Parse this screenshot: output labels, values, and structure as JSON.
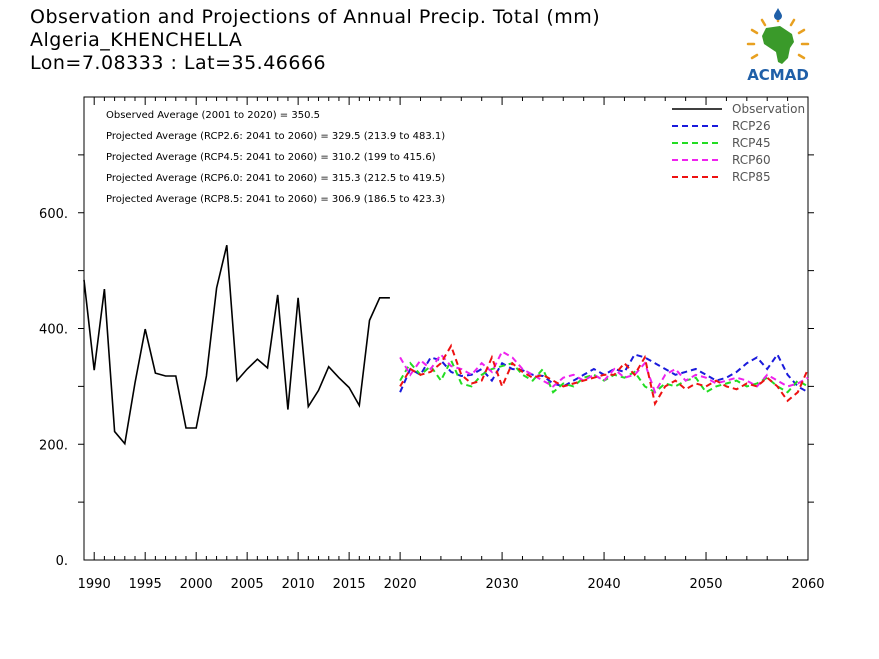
{
  "header": {
    "title": "Observation and Projections of Annual Precip. Total (mm)",
    "location": "Algeria_KHENCHELLA",
    "coords": "Lon=7.08333 : Lat=35.46666"
  },
  "logo": {
    "text": "ACMAD",
    "icon": "africa-map-logo"
  },
  "colors": {
    "observation": "#000000",
    "rcp26": "#1a1adc",
    "rcp45": "#22dd22",
    "rcp60": "#ee22ee",
    "rcp85": "#ee1111",
    "logo_green": "#3a9a2a",
    "logo_blue": "#1f5fa8",
    "logo_orange": "#e8a020"
  },
  "chart_data": {
    "type": "line",
    "title": "Observation and Projections of Annual Precip. Total (mm)",
    "xlim": [
      1989,
      2060
    ],
    "ylim": [
      0,
      800
    ],
    "x_ticks": [
      {
        "value": 1990,
        "label": "1990"
      },
      {
        "value": 1995,
        "label": "1995"
      },
      {
        "value": 2000,
        "label": "2000"
      },
      {
        "value": 2005,
        "label": "2005"
      },
      {
        "value": 2010,
        "label": "2010"
      },
      {
        "value": 2015,
        "label": "2015"
      },
      {
        "value": 2020,
        "label": "2020"
      },
      {
        "value": 2030,
        "label": "2030"
      },
      {
        "value": 2040,
        "label": "2040"
      },
      {
        "value": 2050,
        "label": "2050"
      },
      {
        "value": 2060,
        "label": "2060"
      }
    ],
    "y_ticks": [
      {
        "value": 0,
        "label": "0."
      },
      {
        "value": 200,
        "label": "200."
      },
      {
        "value": 400,
        "label": "400."
      },
      {
        "value": 600,
        "label": "600."
      }
    ],
    "stats": [
      "Observed Average (2001 to 2020) = 350.5",
      "Projected Average (RCP2.6: 2041 to 2060) = 329.5 (213.9 to 483.1)",
      "Projected Average (RCP4.5: 2041 to 2060) = 310.2 (199 to 415.6)",
      "Projected Average (RCP6.0: 2041 to 2060) = 315.3 (212.5 to 419.5)",
      "Projected Average (RCP8.5: 2041 to 2060) = 306.9 (186.5 to 423.3)"
    ],
    "legend_position": "top-right",
    "series": [
      {
        "name": "Observation",
        "dash": "solid",
        "x": [
          1989,
          1990,
          1991,
          1992,
          1993,
          1994,
          1995,
          1996,
          1997,
          1998,
          1999,
          2000,
          2001,
          2002,
          2003,
          2004,
          2005,
          2006,
          2007,
          2008,
          2009,
          2010,
          2011,
          2012,
          2013,
          2014,
          2015,
          2016,
          2017,
          2018,
          2019
        ],
        "y": [
          484,
          328,
          468,
          222,
          201,
          306,
          399,
          323,
          318,
          318,
          228,
          228,
          318,
          470,
          544,
          310,
          330,
          347,
          332,
          458,
          260,
          453,
          265,
          293,
          334,
          315,
          298,
          267,
          414,
          453,
          453
        ]
      },
      {
        "name": "RCP26",
        "dash": "dashed",
        "x": [
          2020,
          2021,
          2022,
          2023,
          2024,
          2025,
          2026,
          2027,
          2028,
          2029,
          2030,
          2031,
          2032,
          2033,
          2034,
          2035,
          2036,
          2037,
          2038,
          2039,
          2040,
          2041,
          2042,
          2043,
          2044,
          2045,
          2046,
          2047,
          2048,
          2049,
          2050,
          2051,
          2052,
          2053,
          2054,
          2055,
          2056,
          2057,
          2058,
          2059,
          2060
        ],
        "y": [
          290,
          330,
          320,
          350,
          345,
          325,
          318,
          320,
          330,
          310,
          340,
          330,
          328,
          320,
          318,
          305,
          300,
          310,
          320,
          330,
          320,
          330,
          325,
          355,
          350,
          340,
          330,
          320,
          325,
          330,
          320,
          310,
          315,
          325,
          340,
          350,
          330,
          355,
          320,
          300,
          290
        ]
      },
      {
        "name": "RCP45",
        "dash": "dashed",
        "x": [
          2020,
          2021,
          2022,
          2023,
          2024,
          2025,
          2026,
          2027,
          2028,
          2029,
          2030,
          2031,
          2032,
          2033,
          2034,
          2035,
          2036,
          2037,
          2038,
          2039,
          2040,
          2041,
          2042,
          2043,
          2044,
          2045,
          2046,
          2047,
          2048,
          2049,
          2050,
          2051,
          2052,
          2053,
          2054,
          2055,
          2056,
          2057,
          2058,
          2059,
          2060
        ],
        "y": [
          310,
          340,
          320,
          335,
          310,
          345,
          305,
          300,
          320,
          330,
          335,
          340,
          320,
          310,
          330,
          290,
          305,
          300,
          315,
          320,
          310,
          320,
          315,
          325,
          300,
          290,
          305,
          300,
          310,
          315,
          290,
          300,
          305,
          310,
          300,
          305,
          315,
          300,
          290,
          310,
          300
        ]
      },
      {
        "name": "RCP60",
        "dash": "dashed",
        "x": [
          2020,
          2021,
          2022,
          2023,
          2024,
          2025,
          2026,
          2027,
          2028,
          2029,
          2030,
          2031,
          2032,
          2033,
          2034,
          2035,
          2036,
          2037,
          2038,
          2039,
          2040,
          2041,
          2042,
          2043,
          2044,
          2045,
          2046,
          2047,
          2048,
          2049,
          2050,
          2051,
          2052,
          2053,
          2054,
          2055,
          2056,
          2057,
          2058,
          2059,
          2060
        ],
        "y": [
          350,
          320,
          345,
          330,
          355,
          335,
          330,
          320,
          340,
          325,
          360,
          350,
          330,
          320,
          310,
          300,
          315,
          320,
          310,
          320,
          310,
          330,
          315,
          320,
          340,
          290,
          320,
          330,
          310,
          320,
          315,
          305,
          310,
          315,
          310,
          300,
          320,
          310,
          300,
          305,
          315
        ]
      },
      {
        "name": "RCP85",
        "dash": "dashed",
        "x": [
          2020,
          2021,
          2022,
          2023,
          2024,
          2025,
          2026,
          2027,
          2028,
          2029,
          2030,
          2031,
          2032,
          2033,
          2034,
          2035,
          2036,
          2037,
          2038,
          2039,
          2040,
          2041,
          2042,
          2043,
          2044,
          2045,
          2046,
          2047,
          2048,
          2049,
          2050,
          2051,
          2052,
          2053,
          2054,
          2055,
          2056,
          2057,
          2058,
          2059,
          2060
        ],
        "y": [
          300,
          330,
          320,
          325,
          340,
          370,
          320,
          305,
          310,
          350,
          300,
          340,
          325,
          315,
          320,
          310,
          300,
          305,
          310,
          315,
          320,
          320,
          340,
          320,
          350,
          270,
          300,
          310,
          295,
          305,
          300,
          310,
          300,
          295,
          305,
          300,
          315,
          300,
          275,
          290,
          330
        ]
      }
    ]
  }
}
